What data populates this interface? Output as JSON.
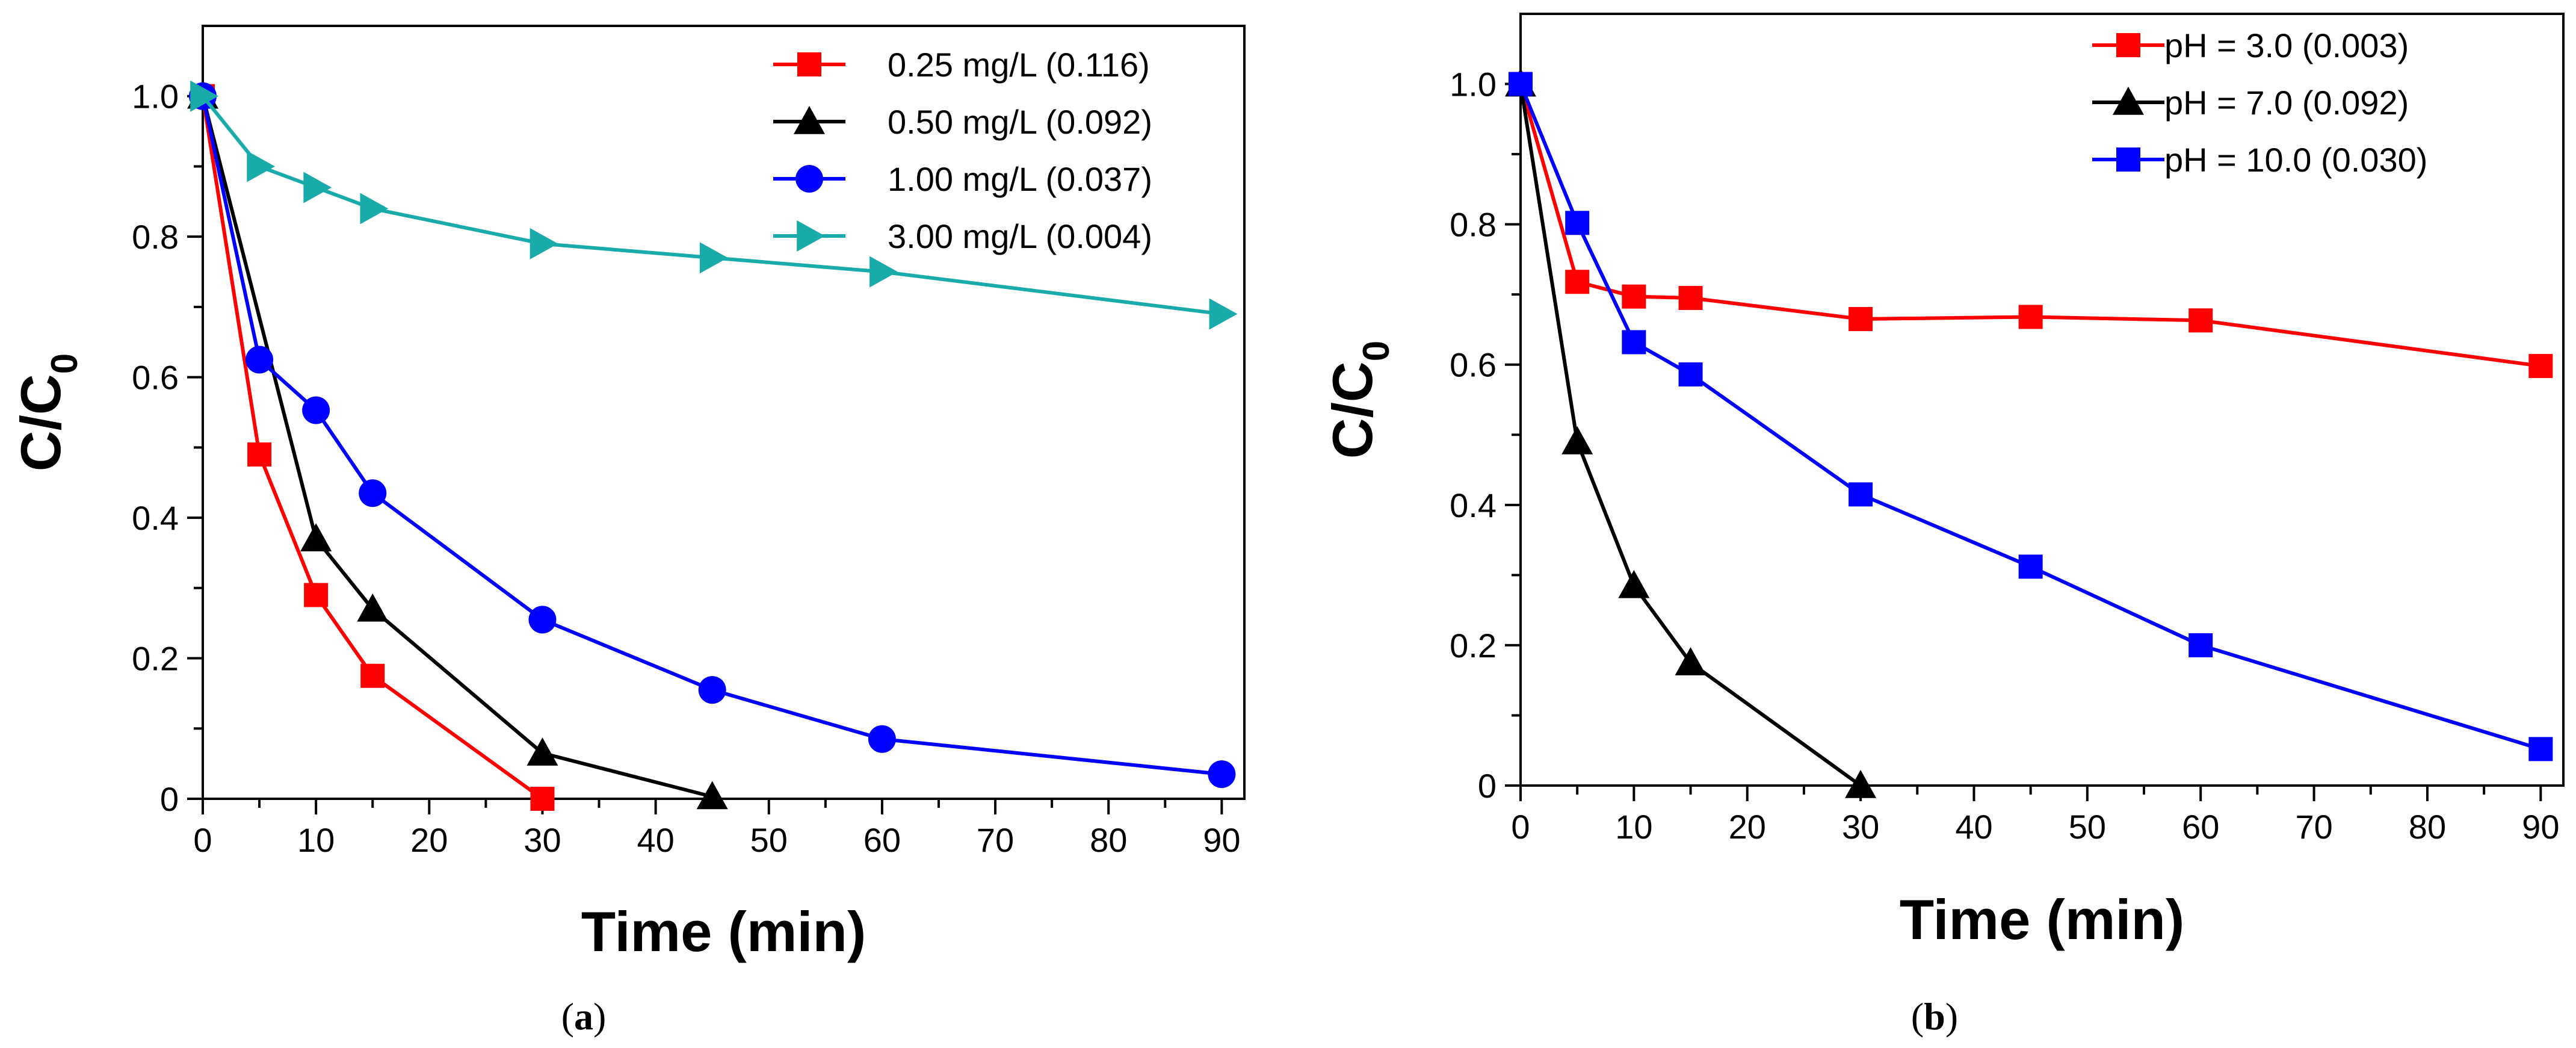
{
  "chart_data": [
    {
      "type": "line",
      "panel_label": "a",
      "xlabel": "Time (min)",
      "ylabel": "C/C",
      "ylabel_subscript": "0",
      "xlim": [
        0,
        92
      ],
      "ylim": [
        0,
        1.1
      ],
      "xticks": [
        "0",
        "10",
        "20",
        "30",
        "40",
        "50",
        "60",
        "70",
        "80",
        "90"
      ],
      "yticks": [
        "0",
        "0.2",
        "0.4",
        "0.6",
        "0.8",
        "1.0"
      ],
      "legend_position": "top-right",
      "series": [
        {
          "name": "0.25 mg/L (0.116)",
          "color": "#ff0000",
          "marker": "square",
          "x": [
            0,
            5,
            10,
            15,
            30
          ],
          "y": [
            1.0,
            0.49,
            0.29,
            0.175,
            0.0
          ]
        },
        {
          "name": "0.50 mg/L (0.092)",
          "color": "#000000",
          "marker": "triangle-up",
          "x": [
            0,
            10,
            15,
            30,
            45
          ],
          "y": [
            1.0,
            0.37,
            0.27,
            0.065,
            0.003
          ]
        },
        {
          "name": "1.00 mg/L (0.037)",
          "color": "#0000ff",
          "marker": "circle",
          "x": [
            0,
            5,
            10,
            15,
            30,
            45,
            60,
            90
          ],
          "y": [
            1.0,
            0.625,
            0.553,
            0.435,
            0.255,
            0.155,
            0.085,
            0.035
          ]
        },
        {
          "name": "3.00 mg/L (0.004)",
          "color": "#19aaaa",
          "marker": "triangle-right",
          "x": [
            0,
            5,
            10,
            15,
            30,
            45,
            60,
            90
          ],
          "y": [
            1.0,
            0.9,
            0.87,
            0.84,
            0.79,
            0.77,
            0.75,
            0.69
          ]
        }
      ]
    },
    {
      "type": "line",
      "panel_label": "b",
      "xlabel": "Time (min)",
      "ylabel": "C/C",
      "ylabel_subscript": "0",
      "xlim": [
        0,
        92
      ],
      "ylim": [
        0,
        1.1
      ],
      "xticks": [
        "0",
        "10",
        "20",
        "30",
        "40",
        "50",
        "60",
        "70",
        "80",
        "90"
      ],
      "yticks": [
        "0",
        "0.2",
        "0.4",
        "0.6",
        "0.8",
        "1.0"
      ],
      "legend_position": "top-right",
      "series": [
        {
          "name": "pH = 3.0 (0.003)",
          "color": "#ff0000",
          "marker": "square",
          "x": [
            0,
            5,
            10,
            15,
            30,
            45,
            60,
            90
          ],
          "y": [
            1.0,
            0.718,
            0.697,
            0.695,
            0.665,
            0.668,
            0.663,
            0.598
          ]
        },
        {
          "name": "pH = 7.0 (0.092)",
          "color": "#000000",
          "marker": "triangle-up",
          "x": [
            0,
            5,
            10,
            15,
            30
          ],
          "y": [
            1.0,
            0.49,
            0.285,
            0.175,
            0.0
          ]
        },
        {
          "name": "pH = 10.0 (0.030)",
          "color": "#0000ff",
          "marker": "square",
          "x": [
            0,
            5,
            10,
            15,
            30,
            45,
            60,
            90
          ],
          "y": [
            1.0,
            0.802,
            0.632,
            0.586,
            0.415,
            0.312,
            0.2,
            0.052
          ]
        }
      ]
    }
  ],
  "captions": [
    {
      "open": "(",
      "letter": "a",
      "close": ")"
    },
    {
      "open": "(",
      "letter": "b",
      "close": ")"
    }
  ]
}
